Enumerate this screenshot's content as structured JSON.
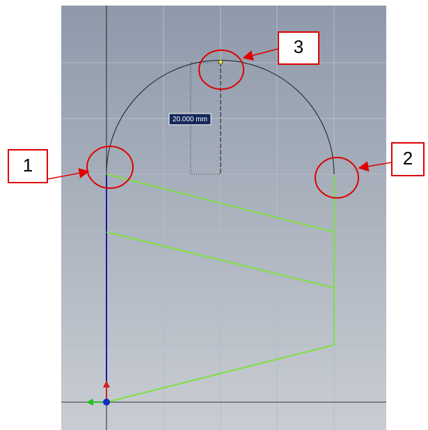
{
  "dimension": {
    "label": "20.000 mm"
  },
  "callouts": [
    "1",
    "2",
    "3"
  ]
}
